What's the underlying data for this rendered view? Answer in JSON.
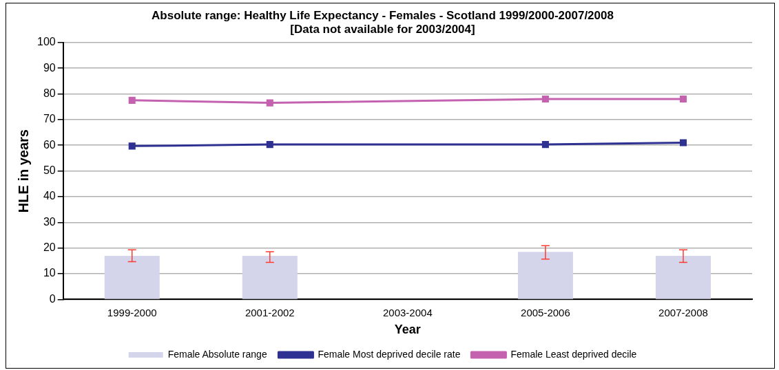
{
  "chart_data": {
    "type": "bar",
    "title": "Absolute range: Healthy Life Expectancy - Females - Scotland 1999/2000-2007/2008 [Data not available for 2003/2004]",
    "xlabel": "Year",
    "ylabel": "HLE in years",
    "categories": [
      "1999-2000",
      "2001-2002",
      "2003-2004",
      "2005-2006",
      "2007-2008"
    ],
    "series": [
      {
        "name": "Female Absolute range",
        "color": "#d4d4ea",
        "values": [
          17,
          17,
          null,
          18.5,
          17
        ],
        "errors": [
          [
            14.7,
            19.3
          ],
          [
            14.4,
            18.6
          ],
          null,
          [
            15.7,
            20.9
          ],
          [
            14.4,
            19.3
          ]
        ]
      },
      {
        "name": "Female Most deprived decile rate",
        "type": "line",
        "color": "#2e3192",
        "values": [
          59.7,
          60.3,
          null,
          60.3,
          61
        ]
      },
      {
        "name": "Female Least deprived decile",
        "type": "line",
        "color": "#c462b0",
        "values": [
          77.5,
          76.5,
          null,
          78,
          78
        ]
      }
    ],
    "ylim": [
      0,
      100
    ],
    "yticks": [
      0,
      10,
      20,
      30,
      40,
      50,
      60,
      70,
      80,
      90,
      100
    ],
    "grid": "y",
    "legend": "bottom",
    "marker": "square"
  }
}
